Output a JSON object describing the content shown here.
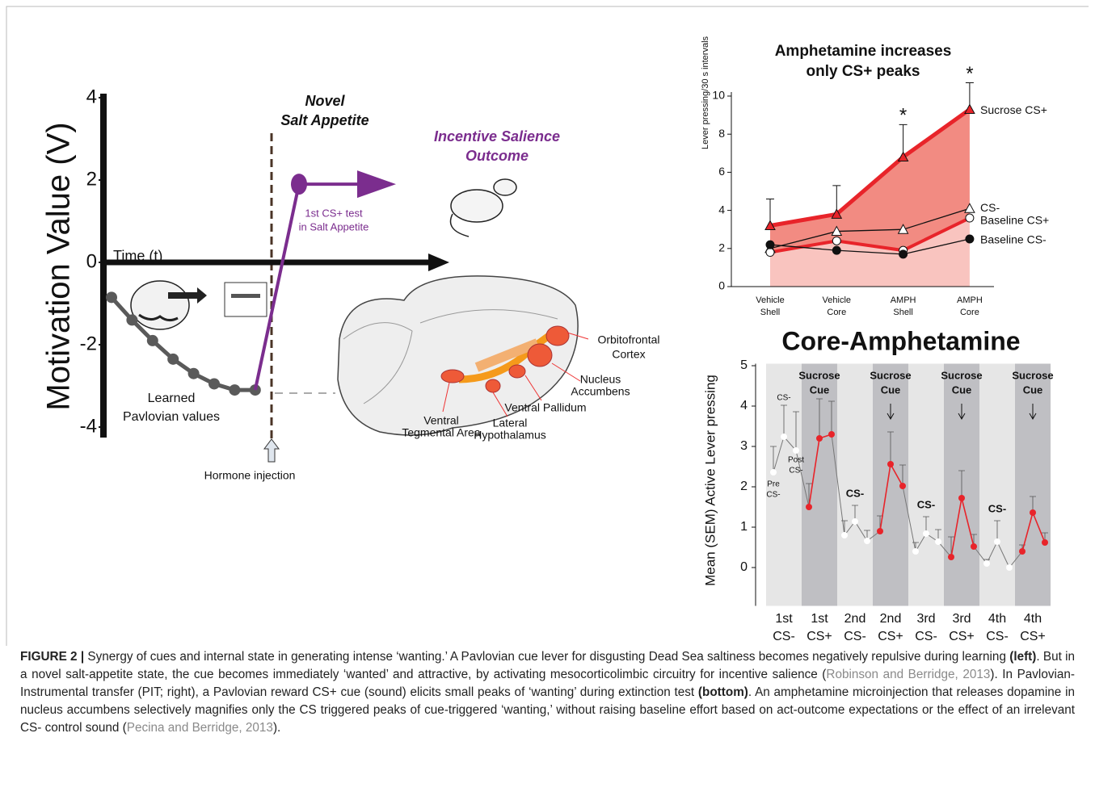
{
  "chart_data": [
    {
      "type": "line",
      "ylabel": "Motivation Value (V)",
      "xlabel": "Time (t)",
      "ylim": [
        -4,
        4
      ],
      "yticks": [
        4,
        2,
        0,
        -2,
        -4
      ],
      "series": [
        {
          "name": [
            "Learned",
            "Pavlovian values"
          ],
          "color": "#5a5a5a",
          "values": [
            -0.85,
            -1.4,
            -1.9,
            -2.35,
            -2.7,
            -2.95,
            -3.1,
            -3.1
          ]
        },
        {
          "name": [
            "1st CS+ test",
            "in Salt Appetite"
          ],
          "color": "#7b2d8e",
          "values": [
            -3.1,
            1.9
          ]
        }
      ],
      "annotations": {
        "state": [
          "Novel",
          "Salt Appetite"
        ],
        "outcome": [
          "Incentive Salience",
          "Outcome"
        ],
        "injection": "Hormone injection",
        "regions": [
          [
            "Orbitofrontal",
            "Cortex"
          ],
          [
            "Nucleus",
            "Accumbens"
          ],
          [
            "Ventral Pallidum"
          ],
          [
            "Ventral",
            "Tegmental Area"
          ],
          [
            "Lateral",
            "Hypothalamus"
          ]
        ]
      }
    },
    {
      "type": "line",
      "title": [
        "Amphetamine increases",
        "only CS+ peaks"
      ],
      "ylabel": "Lever pressing/30 s intervals",
      "categories": [
        [
          "Vehicle",
          "Shell"
        ],
        [
          "Vehicle",
          "Core"
        ],
        [
          "AMPH",
          "Shell"
        ],
        [
          "AMPH",
          "Core"
        ]
      ],
      "ylim": [
        0,
        10
      ],
      "yticks": [
        0,
        2,
        4,
        6,
        8,
        10
      ],
      "series": [
        {
          "name": "Sucrose CS+",
          "color": "#e8242a",
          "marker": "triangle",
          "marker_fill": "#e8242a",
          "values": [
            3.2,
            3.8,
            6.8,
            9.3
          ],
          "errors": [
            1.4,
            1.5,
            1.7,
            1.4
          ]
        },
        {
          "name": "CS-",
          "color": "#111111",
          "marker": "triangle",
          "marker_fill": "#ffffff",
          "values": [
            2.0,
            2.9,
            3.0,
            4.1
          ]
        },
        {
          "name": "Baseline CS+",
          "color": "#e8242a",
          "marker": "circle",
          "marker_fill": "#ffffff",
          "values": [
            1.8,
            2.4,
            1.9,
            3.6
          ]
        },
        {
          "name": "Baseline CS-",
          "color": "#111111",
          "marker": "circle",
          "marker_fill": "#111111",
          "values": [
            2.2,
            1.9,
            1.7,
            2.5
          ]
        }
      ],
      "significance": [
        null,
        null,
        "*",
        "*"
      ]
    },
    {
      "type": "line",
      "title": "Core-Amphetamine",
      "ylabel": "Mean (SEM) Active Lever pressing",
      "ylim": [
        -0.95,
        5.05
      ],
      "yticks": [
        0,
        1,
        2,
        3,
        4,
        5
      ],
      "bands": [
        {
          "label": [
            "1st",
            "CS-"
          ],
          "shade": "#e6e6e6",
          "point_color": "#ffffff",
          "values": [
            2.36,
            3.24,
            2.9
          ],
          "errors": [
            0.64,
            0.78,
            0.96
          ],
          "header": null,
          "arrow": false,
          "point_labels": [
            [
              "Pre",
              "CS-"
            ],
            [
              "CS-"
            ],
            [
              "Post",
              "CS-"
            ]
          ]
        },
        {
          "label": [
            "1st",
            "CS+"
          ],
          "shade": "#bfbfc3",
          "point_color": "#e8242a",
          "values": [
            1.5,
            3.2,
            3.3
          ],
          "errors": [
            0.58,
            0.98,
            0.82
          ],
          "header": [
            "Sucrose",
            "Cue"
          ],
          "arrow": false
        },
        {
          "label": [
            "2nd",
            "CS-"
          ],
          "shade": "#e6e6e6",
          "point_color": "#ffffff",
          "values": [
            0.8,
            1.14,
            0.66
          ],
          "errors": [
            0.36,
            0.4,
            0.26
          ],
          "header": [
            "CS-"
          ],
          "arrow": false
        },
        {
          "label": [
            "2nd",
            "CS+"
          ],
          "shade": "#bfbfc3",
          "point_color": "#e8242a",
          "values": [
            0.9,
            2.56,
            2.02
          ],
          "errors": [
            0.38,
            0.8,
            0.52
          ],
          "header": [
            "Sucrose",
            "Cue"
          ],
          "arrow": true
        },
        {
          "label": [
            "3rd",
            "CS-"
          ],
          "shade": "#e6e6e6",
          "point_color": "#ffffff",
          "values": [
            0.4,
            0.84,
            0.64
          ],
          "errors": [
            0.22,
            0.42,
            0.3
          ],
          "header": [
            "CS-"
          ],
          "arrow": false
        },
        {
          "label": [
            "3rd",
            "CS+"
          ],
          "shade": "#bfbfc3",
          "point_color": "#e8242a",
          "values": [
            0.26,
            1.72,
            0.52
          ],
          "errors": [
            0.5,
            0.68,
            0.3
          ],
          "header": [
            "Sucrose",
            "Cue"
          ],
          "arrow": true
        },
        {
          "label": [
            "4th",
            "CS-"
          ],
          "shade": "#e6e6e6",
          "point_color": "#ffffff",
          "values": [
            0.1,
            0.64,
            0.0
          ],
          "errors": [
            0.1,
            0.52,
            0.0
          ],
          "header": [
            "CS-"
          ],
          "arrow": false
        },
        {
          "label": [
            "4th",
            "CS+"
          ],
          "shade": "#bfbfc3",
          "point_color": "#e8242a",
          "values": [
            0.4,
            1.36,
            0.62
          ],
          "errors": [
            0.16,
            0.4,
            0.24
          ],
          "header": [
            "Sucrose",
            "Cue"
          ],
          "arrow": true
        }
      ]
    }
  ],
  "caption": [
    {
      "text": "FIGURE 2 |",
      "style": "bold"
    },
    {
      "text": " Synergy of cues and internal state in generating intense ‘wanting.’ A Pavlovian cue lever for disgusting Dead Sea saltiness becomes negatively repulsive during learning "
    },
    {
      "text": "(left)",
      "style": "bold"
    },
    {
      "text": ". But in a novel salt-appetite state, the cue becomes immediately ‘wanted’ and attractive, by activating mesocorticolimbic circuitry for incentive salience ("
    },
    {
      "text": "Robinson and Berridge, 2013",
      "style": "link"
    },
    {
      "text": "). In Pavlovian-Instrumental transfer (PIT; right), a Pavlovian reward CS+ cue (sound) elicits small peaks of ‘wanting’ during extinction test "
    },
    {
      "text": "(bottom)",
      "style": "bold"
    },
    {
      "text": ". An amphetamine microinjection that releases dopamine in nucleus accumbens selectively magnifies only the CS triggered peaks of cue-triggered ‘wanting,’ without raising baseline effort based on act-outcome expectations or the effect of an irrelevant CS- control sound ("
    },
    {
      "text": "Pecina and Berridge, 2013",
      "style": "link"
    },
    {
      "text": ")."
    }
  ]
}
